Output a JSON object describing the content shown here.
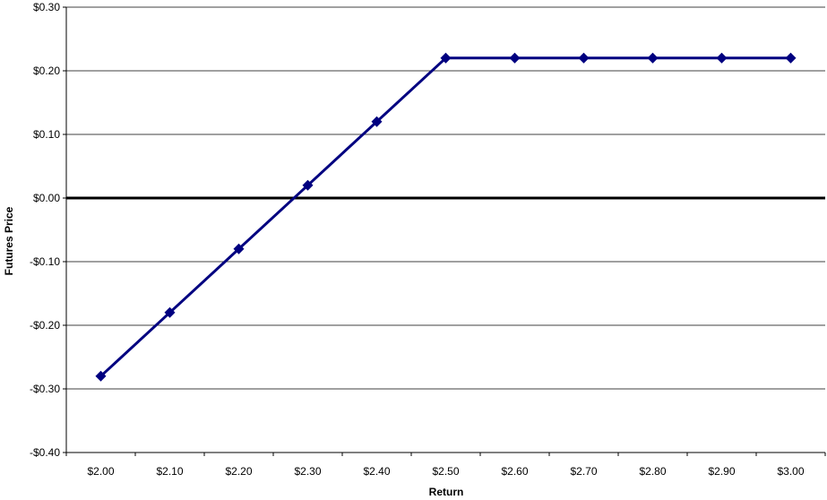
{
  "chart_data": {
    "type": "line",
    "title": "",
    "xlabel": "Return",
    "ylabel": "Futures Price",
    "categories": [
      "$2.00",
      "$2.10",
      "$2.20",
      "$2.30",
      "$2.40",
      "$2.50",
      "$2.60",
      "$2.70",
      "$2.80",
      "$2.90",
      "$3.00"
    ],
    "x": [
      2.0,
      2.1,
      2.2,
      2.3,
      2.4,
      2.5,
      2.6,
      2.7,
      2.8,
      2.9,
      3.0
    ],
    "y_ticks": [
      0.3,
      0.2,
      0.1,
      0.0,
      -0.1,
      -0.2,
      -0.3,
      -0.4
    ],
    "y_tick_labels": [
      "$0.30",
      "$0.20",
      "$0.10",
      "$0.00",
      "-$0.10",
      "-$0.20",
      "-$0.30",
      "-$0.40"
    ],
    "ylim": [
      -0.4,
      0.3
    ],
    "series": [
      {
        "values": [
          -0.28,
          -0.18,
          -0.08,
          0.02,
          0.12,
          0.22,
          0.22,
          0.22,
          0.22,
          0.22,
          0.22
        ]
      }
    ],
    "grid": true,
    "legend": "none",
    "colors": {
      "series": "#000080",
      "zero_line": "#000000",
      "grid": "#000000"
    }
  }
}
